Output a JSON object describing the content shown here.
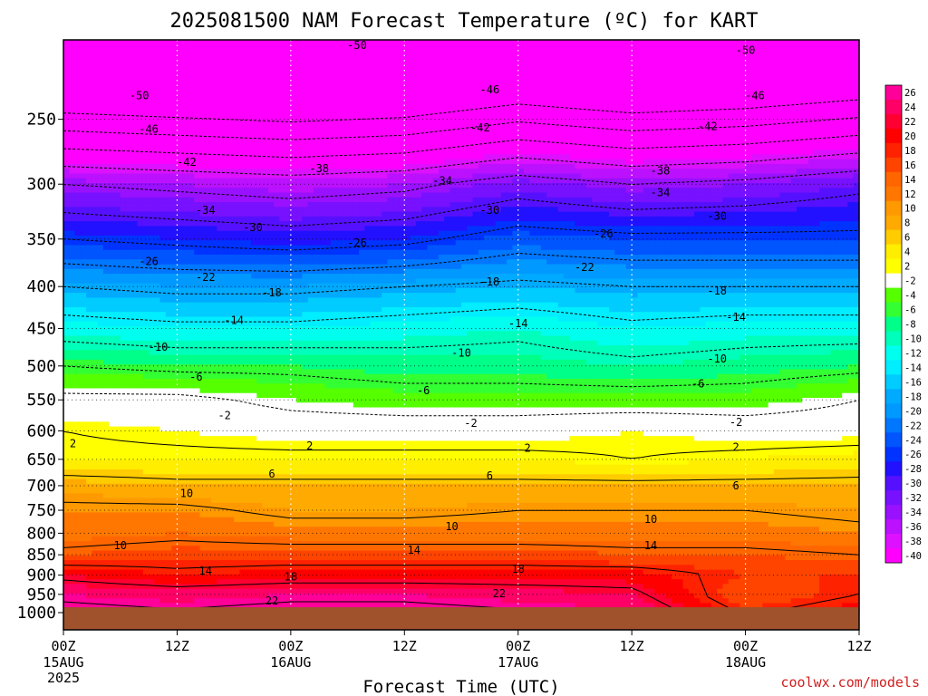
{
  "chart_data": {
    "type": "heatmap",
    "title": "2025081500 NAM Forecast Temperature (ºC) for KART",
    "xlabel": "Forecast Time (UTC)",
    "credit": "coolwx.com/models",
    "x_ticks": [
      {
        "hour": 0,
        "line1": "00Z",
        "line2": "15AUG",
        "line3": "2025"
      },
      {
        "hour": 12,
        "line1": "12Z",
        "line2": "",
        "line3": ""
      },
      {
        "hour": 24,
        "line1": "00Z",
        "line2": "16AUG",
        "line3": ""
      },
      {
        "hour": 36,
        "line1": "12Z",
        "line2": "",
        "line3": ""
      },
      {
        "hour": 48,
        "line1": "00Z",
        "line2": "17AUG",
        "line3": ""
      },
      {
        "hour": 60,
        "line1": "12Z",
        "line2": "",
        "line3": ""
      },
      {
        "hour": 72,
        "line1": "00Z",
        "line2": "18AUG",
        "line3": ""
      },
      {
        "hour": 84,
        "line1": "12Z",
        "line2": "",
        "line3": ""
      }
    ],
    "xlim": [
      0,
      84
    ],
    "y_ticks": [
      "250",
      "300",
      "350",
      "400",
      "450",
      "500",
      "550",
      "600",
      "650",
      "700",
      "750",
      "800",
      "850",
      "900",
      "950",
      "1000"
    ],
    "y_tick_values": [
      250,
      300,
      350,
      400,
      450,
      500,
      550,
      600,
      650,
      700,
      750,
      800,
      850,
      900,
      950,
      1000
    ],
    "ylim": [
      1000,
      200
    ],
    "yscale": "log",
    "colorbar": {
      "labels": [
        "26",
        "24",
        "22",
        "20",
        "18",
        "16",
        "14",
        "12",
        "10",
        "8",
        "6",
        "4",
        "2",
        "-2",
        "-4",
        "-6",
        "-8",
        "-10",
        "-12",
        "-14",
        "-16",
        "-18",
        "-20",
        "-22",
        "-24",
        "-26",
        "-28",
        "-30",
        "-32",
        "-34",
        "-36",
        "-38",
        "-40"
      ],
      "colors": [
        "#ff0099",
        "#ff0066",
        "#ff0033",
        "#ff0000",
        "#ff2200",
        "#ff4400",
        "#ff6600",
        "#ff7700",
        "#ff9900",
        "#ffaa00",
        "#ffcc00",
        "#ffee00",
        "#ffff00",
        "#ffffff",
        "#55ff00",
        "#33ff33",
        "#00ff88",
        "#00ffbb",
        "#00ffee",
        "#00eeff",
        "#00ccff",
        "#00aaff",
        "#0099ff",
        "#0077ff",
        "#0055ff",
        "#0033ff",
        "#2211ff",
        "#5511ff",
        "#7711ff",
        "#9911ff",
        "#bb11ff",
        "#dd11ff",
        "#ff00ff"
      ]
    },
    "profiles": [
      {
        "hour": 0,
        "levels": [
          300,
          350,
          400,
          450,
          500,
          550,
          600,
          650,
          700,
          750,
          800,
          850,
          900,
          950
        ],
        "temps": [
          -34,
          -26,
          -18,
          -12,
          -6,
          -1,
          2,
          3,
          8,
          11,
          12,
          15,
          21,
          25
        ]
      },
      {
        "hour": 12,
        "levels": [
          300,
          350,
          400,
          450,
          500,
          550,
          600,
          650,
          700,
          750,
          800,
          850,
          900,
          950
        ],
        "temps": [
          -35,
          -27,
          -19,
          -13,
          -7,
          -1,
          1,
          3,
          7,
          11,
          13,
          16,
          19,
          24
        ]
      },
      {
        "hour": 24,
        "levels": [
          300,
          350,
          400,
          450,
          500,
          550,
          600,
          650,
          700,
          750,
          800,
          850,
          900,
          950
        ],
        "temps": [
          -36,
          -28,
          -19,
          -13,
          -7,
          -3,
          0,
          3,
          7,
          9,
          12,
          16,
          20,
          25
        ]
      },
      {
        "hour": 36,
        "levels": [
          300,
          350,
          400,
          450,
          500,
          550,
          600,
          650,
          700,
          750,
          800,
          850,
          900,
          950
        ],
        "temps": [
          -35,
          -27,
          -18,
          -12,
          -8,
          -4,
          0,
          3,
          7,
          9,
          12,
          16,
          20,
          25
        ]
      },
      {
        "hour": 48,
        "levels": [
          300,
          350,
          400,
          450,
          500,
          550,
          600,
          650,
          700,
          750,
          800,
          850,
          900,
          950
        ],
        "temps": [
          -32,
          -24,
          -17,
          -11,
          -8,
          -4,
          0,
          3,
          7,
          10,
          12,
          16,
          20,
          24
        ]
      },
      {
        "hour": 60,
        "levels": [
          300,
          350,
          400,
          450,
          500,
          550,
          600,
          650,
          700,
          750,
          800,
          850,
          900,
          950
        ],
        "temps": [
          -34,
          -25,
          -18,
          -13,
          -9,
          -4,
          1,
          2,
          7,
          10,
          12,
          15,
          20,
          23
        ]
      },
      {
        "hour": 72,
        "levels": [
          300,
          350,
          400,
          450,
          500,
          550,
          600,
          650,
          700,
          750,
          800,
          850,
          900,
          950
        ],
        "temps": [
          -33,
          -25,
          -18,
          -12,
          -8,
          -4,
          0,
          3,
          7,
          10,
          12,
          15,
          17,
          15
        ]
      },
      {
        "hour": 84,
        "levels": [
          300,
          350,
          400,
          450,
          500,
          550,
          600,
          650,
          700,
          750,
          800,
          850,
          900,
          950
        ],
        "temps": [
          -31,
          -25,
          -18,
          -12,
          -7,
          -2,
          0,
          4,
          7,
          9,
          11,
          14,
          17,
          18
        ]
      }
    ],
    "contour_labels": [
      {
        "text": "-50",
        "hour": 31,
        "p": 203
      },
      {
        "text": "-50",
        "hour": 72,
        "p": 206
      },
      {
        "text": "-50",
        "hour": 8,
        "p": 234
      },
      {
        "text": "-46",
        "hour": 45,
        "p": 230
      },
      {
        "text": "-46",
        "hour": 73,
        "p": 234
      },
      {
        "text": "-46",
        "hour": 9,
        "p": 257
      },
      {
        "text": "-42",
        "hour": 44,
        "p": 256
      },
      {
        "text": "-42",
        "hour": 68,
        "p": 255
      },
      {
        "text": "-42",
        "hour": 13,
        "p": 282
      },
      {
        "text": "-38",
        "hour": 27,
        "p": 287
      },
      {
        "text": "-38",
        "hour": 63,
        "p": 289
      },
      {
        "text": "-34",
        "hour": 40,
        "p": 297
      },
      {
        "text": "-34",
        "hour": 63,
        "p": 307
      },
      {
        "text": "-34",
        "hour": 15,
        "p": 323
      },
      {
        "text": "-30",
        "hour": 45,
        "p": 323
      },
      {
        "text": "-30",
        "hour": 69,
        "p": 328
      },
      {
        "text": "-30",
        "hour": 20,
        "p": 339
      },
      {
        "text": "-26",
        "hour": 31,
        "p": 354
      },
      {
        "text": "-26",
        "hour": 57,
        "p": 345
      },
      {
        "text": "-26",
        "hour": 9,
        "p": 373
      },
      {
        "text": "-22",
        "hour": 15,
        "p": 390
      },
      {
        "text": "-22",
        "hour": 55,
        "p": 379
      },
      {
        "text": "-18",
        "hour": 22,
        "p": 407
      },
      {
        "text": "-18",
        "hour": 45,
        "p": 395
      },
      {
        "text": "-18",
        "hour": 69,
        "p": 405
      },
      {
        "text": "-14",
        "hour": 18,
        "p": 440
      },
      {
        "text": "-14",
        "hour": 48,
        "p": 444
      },
      {
        "text": "-14",
        "hour": 71,
        "p": 436
      },
      {
        "text": "-10",
        "hour": 10,
        "p": 474
      },
      {
        "text": "-10",
        "hour": 42,
        "p": 482
      },
      {
        "text": "-10",
        "hour": 69,
        "p": 490
      },
      {
        "text": "-6",
        "hour": 14,
        "p": 516
      },
      {
        "text": "-6",
        "hour": 67,
        "p": 526
      },
      {
        "text": "-6",
        "hour": 38,
        "p": 536
      },
      {
        "text": "-2",
        "hour": 17,
        "p": 575
      },
      {
        "text": "-2",
        "hour": 43,
        "p": 587
      },
      {
        "text": "-2",
        "hour": 71,
        "p": 586
      },
      {
        "text": "2",
        "hour": 1,
        "p": 622
      },
      {
        "text": "2",
        "hour": 26,
        "p": 626
      },
      {
        "text": "2",
        "hour": 49,
        "p": 630
      },
      {
        "text": "2",
        "hour": 71,
        "p": 628
      },
      {
        "text": "6",
        "hour": 22,
        "p": 677
      },
      {
        "text": "6",
        "hour": 45,
        "p": 681
      },
      {
        "text": "6",
        "hour": 71,
        "p": 700
      },
      {
        "text": "10",
        "hour": 13,
        "p": 715
      },
      {
        "text": "10",
        "hour": 41,
        "p": 785
      },
      {
        "text": "10",
        "hour": 62,
        "p": 769
      },
      {
        "text": "10",
        "hour": 6,
        "p": 828
      },
      {
        "text": "14",
        "hour": 37,
        "p": 839
      },
      {
        "text": "14",
        "hour": 62,
        "p": 828
      },
      {
        "text": "14",
        "hour": 15,
        "p": 890
      },
      {
        "text": "18",
        "hour": 24,
        "p": 904
      },
      {
        "text": "18",
        "hour": 48,
        "p": 885
      },
      {
        "text": "22",
        "hour": 22,
        "p": 967
      },
      {
        "text": "22",
        "hour": 46,
        "p": 948
      }
    ]
  }
}
